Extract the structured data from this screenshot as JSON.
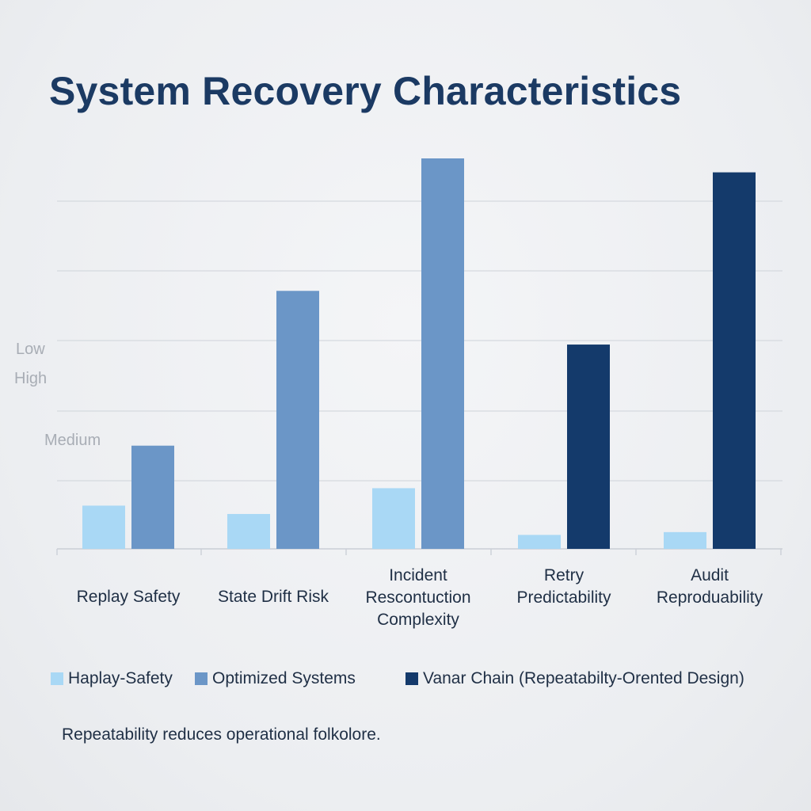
{
  "chart_data": {
    "type": "bar",
    "title": "System Recovery Characteristics",
    "categories": [
      [
        "Replay Safety"
      ],
      [
        "State Drift Risk"
      ],
      [
        "Incident",
        "Rescontuction",
        "Complexity"
      ],
      [
        "Retry",
        "Predictability"
      ],
      [
        "Audit",
        "Reproduability"
      ]
    ],
    "y_tick_labels": [
      "Low",
      "High",
      "Medium"
    ],
    "ylim": [
      0,
      5
    ],
    "grid": true,
    "bar_groups": [
      {
        "values": [
          0.62,
          1.48
        ],
        "series": [
          0,
          1
        ]
      },
      {
        "values": [
          0.5,
          3.7
        ],
        "series": [
          0,
          1
        ]
      },
      {
        "values": [
          0.87,
          5.6
        ],
        "series": [
          0,
          1
        ]
      },
      {
        "values": [
          0.2,
          2.93
        ],
        "series": [
          0,
          2
        ]
      },
      {
        "values": [
          0.24,
          5.4
        ],
        "series": [
          0,
          2
        ]
      }
    ],
    "series": [
      {
        "name": "Haplay-Safety",
        "color": "#a9d8f5"
      },
      {
        "name": "Optimized Systems",
        "color": "#6b96c7"
      },
      {
        "name": "Vanar Chain (Repeatabilty-Orented Design)",
        "color": "#143a6b"
      }
    ],
    "legend_position": "bottom",
    "xlabel": "",
    "ylabel": ""
  },
  "legend": {
    "items": [
      {
        "label": "Haplay-Safety",
        "color": "#a9d8f5"
      },
      {
        "label": "Optimized Systems",
        "color": "#6b96c7"
      },
      {
        "label": "Vanar Chain (Repeatabilty-Orented Design)",
        "color": "#143a6b"
      }
    ]
  },
  "caption": "Repeatability reduces operational folkolore.",
  "colors": {
    "title": "#1b3a63",
    "grid": "#d5d9df",
    "axis": "#c9ced6",
    "tick_label": "#a8adb5",
    "category_label": "#1f2f45"
  }
}
